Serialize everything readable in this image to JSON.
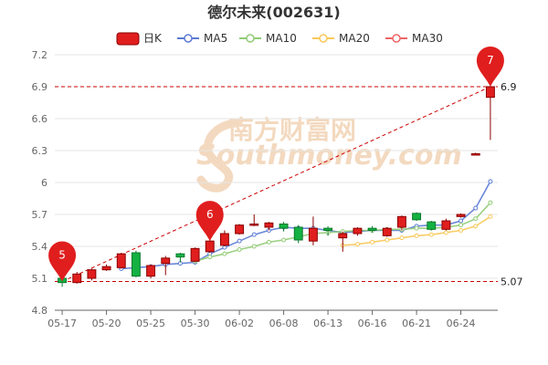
{
  "title": "德尔未来(002631)",
  "watermark": {
    "cn": "南方财富网",
    "en": "Southmoney.com"
  },
  "legend": [
    {
      "label": "日K",
      "color": "#e01e1e"
    },
    {
      "label": "MA5",
      "color": "#5b7bd5"
    },
    {
      "label": "MA10",
      "color": "#91cc75"
    },
    {
      "label": "MA20",
      "color": "#fac858"
    },
    {
      "label": "MA30",
      "color": "#ee6666"
    }
  ],
  "chart_data": {
    "type": "candlestick",
    "title": "德尔未来(002631)",
    "ylim": [
      4.8,
      7.2
    ],
    "yticks": [
      "4.8",
      "5.1",
      "5.4",
      "5.7",
      "6",
      "6.3",
      "6.6",
      "6.9",
      "7.2"
    ],
    "x_tick_labels": [
      {
        "index": 0,
        "label": "05-17"
      },
      {
        "index": 3,
        "label": "05-20"
      },
      {
        "index": 6,
        "label": "05-25"
      },
      {
        "index": 9,
        "label": "05-30"
      },
      {
        "index": 12,
        "label": "06-02"
      },
      {
        "index": 15,
        "label": "06-08"
      },
      {
        "index": 18,
        "label": "06-13"
      },
      {
        "index": 21,
        "label": "06-16"
      },
      {
        "index": 24,
        "label": "06-21"
      },
      {
        "index": 27,
        "label": "06-24"
      }
    ],
    "candles": [
      {
        "o": 5.1,
        "c": 5.06,
        "h": 5.14,
        "l": 5.02
      },
      {
        "o": 5.06,
        "c": 5.14,
        "h": 5.16,
        "l": 5.05
      },
      {
        "o": 5.1,
        "c": 5.18,
        "h": 5.19,
        "l": 5.08
      },
      {
        "o": 5.18,
        "c": 5.21,
        "h": 5.23,
        "l": 5.17
      },
      {
        "o": 5.2,
        "c": 5.33,
        "h": 5.34,
        "l": 5.19
      },
      {
        "o": 5.34,
        "c": 5.12,
        "h": 5.36,
        "l": 5.11
      },
      {
        "o": 5.12,
        "c": 5.22,
        "h": 5.23,
        "l": 5.1
      },
      {
        "o": 5.24,
        "c": 5.29,
        "h": 5.31,
        "l": 5.13
      },
      {
        "o": 5.33,
        "c": 5.3,
        "h": 5.34,
        "l": 5.25
      },
      {
        "o": 5.26,
        "c": 5.38,
        "h": 5.39,
        "l": 5.25
      },
      {
        "o": 5.35,
        "c": 5.45,
        "h": 5.47,
        "l": 5.34
      },
      {
        "o": 5.41,
        "c": 5.52,
        "h": 5.55,
        "l": 5.4
      },
      {
        "o": 5.52,
        "c": 5.6,
        "h": 5.61,
        "l": 5.51
      },
      {
        "o": 5.6,
        "c": 5.61,
        "h": 5.7,
        "l": 5.59
      },
      {
        "o": 5.58,
        "c": 5.62,
        "h": 5.63,
        "l": 5.55
      },
      {
        "o": 5.61,
        "c": 5.57,
        "h": 5.63,
        "l": 5.54
      },
      {
        "o": 5.58,
        "c": 5.46,
        "h": 5.6,
        "l": 5.43
      },
      {
        "o": 5.45,
        "c": 5.57,
        "h": 5.68,
        "l": 5.41
      },
      {
        "o": 5.57,
        "c": 5.55,
        "h": 5.59,
        "l": 5.5
      },
      {
        "o": 5.48,
        "c": 5.52,
        "h": 5.54,
        "l": 5.35
      },
      {
        "o": 5.52,
        "c": 5.57,
        "h": 5.58,
        "l": 5.5
      },
      {
        "o": 5.57,
        "c": 5.55,
        "h": 5.59,
        "l": 5.53
      },
      {
        "o": 5.5,
        "c": 5.57,
        "h": 5.58,
        "l": 5.49
      },
      {
        "o": 5.58,
        "c": 5.68,
        "h": 5.69,
        "l": 5.55
      },
      {
        "o": 5.71,
        "c": 5.65,
        "h": 5.72,
        "l": 5.64
      },
      {
        "o": 5.63,
        "c": 5.56,
        "h": 5.64,
        "l": 5.55
      },
      {
        "o": 5.56,
        "c": 5.64,
        "h": 5.66,
        "l": 5.55
      },
      {
        "o": 5.68,
        "c": 5.7,
        "h": 5.71,
        "l": 5.67
      },
      {
        "o": 6.27,
        "c": 6.27,
        "h": 6.28,
        "l": 6.26
      },
      {
        "o": 6.8,
        "c": 6.9,
        "h": 6.91,
        "l": 6.4
      }
    ],
    "ma5": [
      null,
      null,
      null,
      null,
      5.19,
      5.2,
      5.21,
      5.23,
      5.24,
      5.25,
      5.33,
      5.39,
      5.45,
      5.51,
      5.55,
      5.58,
      5.57,
      5.57,
      5.55,
      5.53,
      5.54,
      5.55,
      5.55,
      5.55,
      5.59,
      5.6,
      5.6,
      5.64,
      5.76,
      6.01
    ],
    "ma10": [
      null,
      null,
      null,
      null,
      null,
      null,
      null,
      null,
      null,
      5.26,
      5.3,
      5.33,
      5.37,
      5.4,
      5.44,
      5.46,
      5.49,
      5.52,
      5.53,
      5.54,
      5.55,
      5.55,
      5.56,
      5.56,
      5.57,
      5.57,
      5.58,
      5.6,
      5.66,
      5.81
    ],
    "ma20": [
      null,
      null,
      null,
      null,
      null,
      null,
      null,
      null,
      null,
      null,
      null,
      null,
      null,
      null,
      null,
      null,
      null,
      null,
      null,
      5.41,
      5.42,
      5.44,
      5.46,
      5.48,
      5.5,
      5.51,
      5.53,
      5.55,
      5.59,
      5.68
    ],
    "reference_lines": [
      {
        "label": "6.9",
        "value": 6.9
      },
      {
        "label": "5.07",
        "value": 5.07
      }
    ],
    "markers": [
      {
        "label": "5",
        "index": 0,
        "value": 5.07
      },
      {
        "label": "6",
        "index": 10,
        "value": 5.45
      },
      {
        "label": "7",
        "index": 29,
        "value": 6.9
      }
    ],
    "grid": true,
    "legend_position": "top"
  }
}
